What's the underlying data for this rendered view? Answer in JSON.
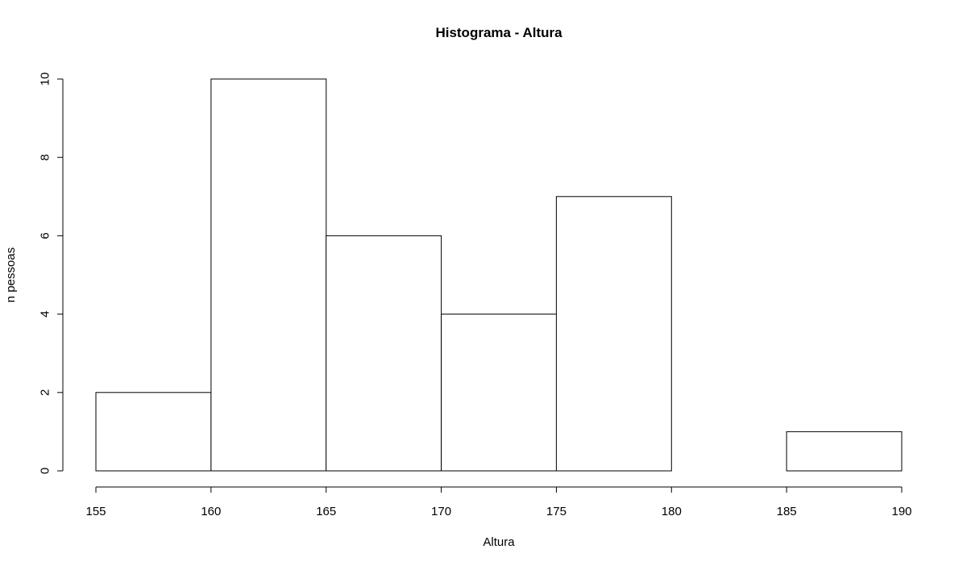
{
  "chart_data": {
    "type": "bar",
    "title": "Histograma - Altura",
    "xlabel": "Altura",
    "ylabel": "n pessoas",
    "bins": [
      {
        "start": 155,
        "end": 160,
        "count": 2
      },
      {
        "start": 160,
        "end": 165,
        "count": 10
      },
      {
        "start": 165,
        "end": 170,
        "count": 6
      },
      {
        "start": 170,
        "end": 175,
        "count": 4
      },
      {
        "start": 175,
        "end": 180,
        "count": 7
      },
      {
        "start": 180,
        "end": 185,
        "count": 0
      },
      {
        "start": 185,
        "end": 190,
        "count": 1
      }
    ],
    "xlim": [
      155,
      190
    ],
    "ylim": [
      0,
      10
    ],
    "x_ticks": [
      "155",
      "160",
      "165",
      "170",
      "175",
      "180",
      "185",
      "190"
    ],
    "y_ticks": [
      "0",
      "2",
      "4",
      "6",
      "8",
      "10"
    ],
    "grid": false,
    "bar_fill": "#ffffff",
    "bar_stroke": "#000000"
  }
}
